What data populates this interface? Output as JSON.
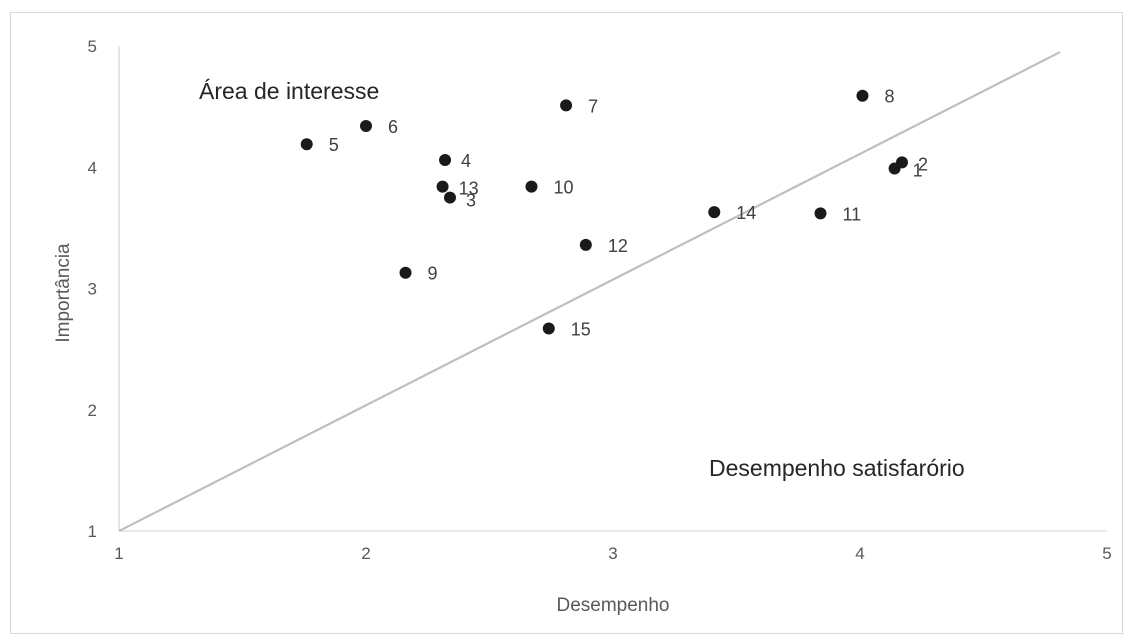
{
  "chart_data": {
    "type": "scatter",
    "title": "",
    "xlabel": "Desempenho",
    "ylabel": "Importância",
    "xlim": [
      1,
      5
    ],
    "ylim": [
      1,
      5
    ],
    "x_ticks": [
      "1",
      "2",
      "3",
      "4",
      "5"
    ],
    "y_ticks": [
      "1",
      "2",
      "3",
      "4",
      "5"
    ],
    "grid": false,
    "legend": "none",
    "points": [
      {
        "label": "1",
        "x": 4.14,
        "y": 3.99
      },
      {
        "label": "2",
        "x": 4.17,
        "y": 4.04
      },
      {
        "label": "3",
        "x": 2.34,
        "y": 3.75
      },
      {
        "label": "4",
        "x": 2.32,
        "y": 4.06
      },
      {
        "label": "5",
        "x": 1.76,
        "y": 4.19
      },
      {
        "label": "6",
        "x": 2.0,
        "y": 4.34
      },
      {
        "label": "7",
        "x": 2.81,
        "y": 4.51
      },
      {
        "label": "8",
        "x": 4.01,
        "y": 4.59
      },
      {
        "label": "9",
        "x": 2.16,
        "y": 3.13
      },
      {
        "label": "10",
        "x": 2.67,
        "y": 3.84
      },
      {
        "label": "11",
        "x": 3.84,
        "y": 3.62
      },
      {
        "label": "12",
        "x": 2.89,
        "y": 3.36
      },
      {
        "label": "13",
        "x": 2.31,
        "y": 3.84
      },
      {
        "label": "14",
        "x": 3.41,
        "y": 3.63
      },
      {
        "label": "15",
        "x": 2.74,
        "y": 2.67
      }
    ],
    "reference_line": {
      "x": [
        1,
        4.81
      ],
      "y": [
        1,
        4.95
      ]
    },
    "annotations": [
      "Área de interesse",
      "Desempenho satisfarório"
    ],
    "colors": {
      "points": "#1a1a1a",
      "reference_line": "#bfbfbf",
      "axis": "#d9d9d9",
      "text": "#595959"
    }
  }
}
